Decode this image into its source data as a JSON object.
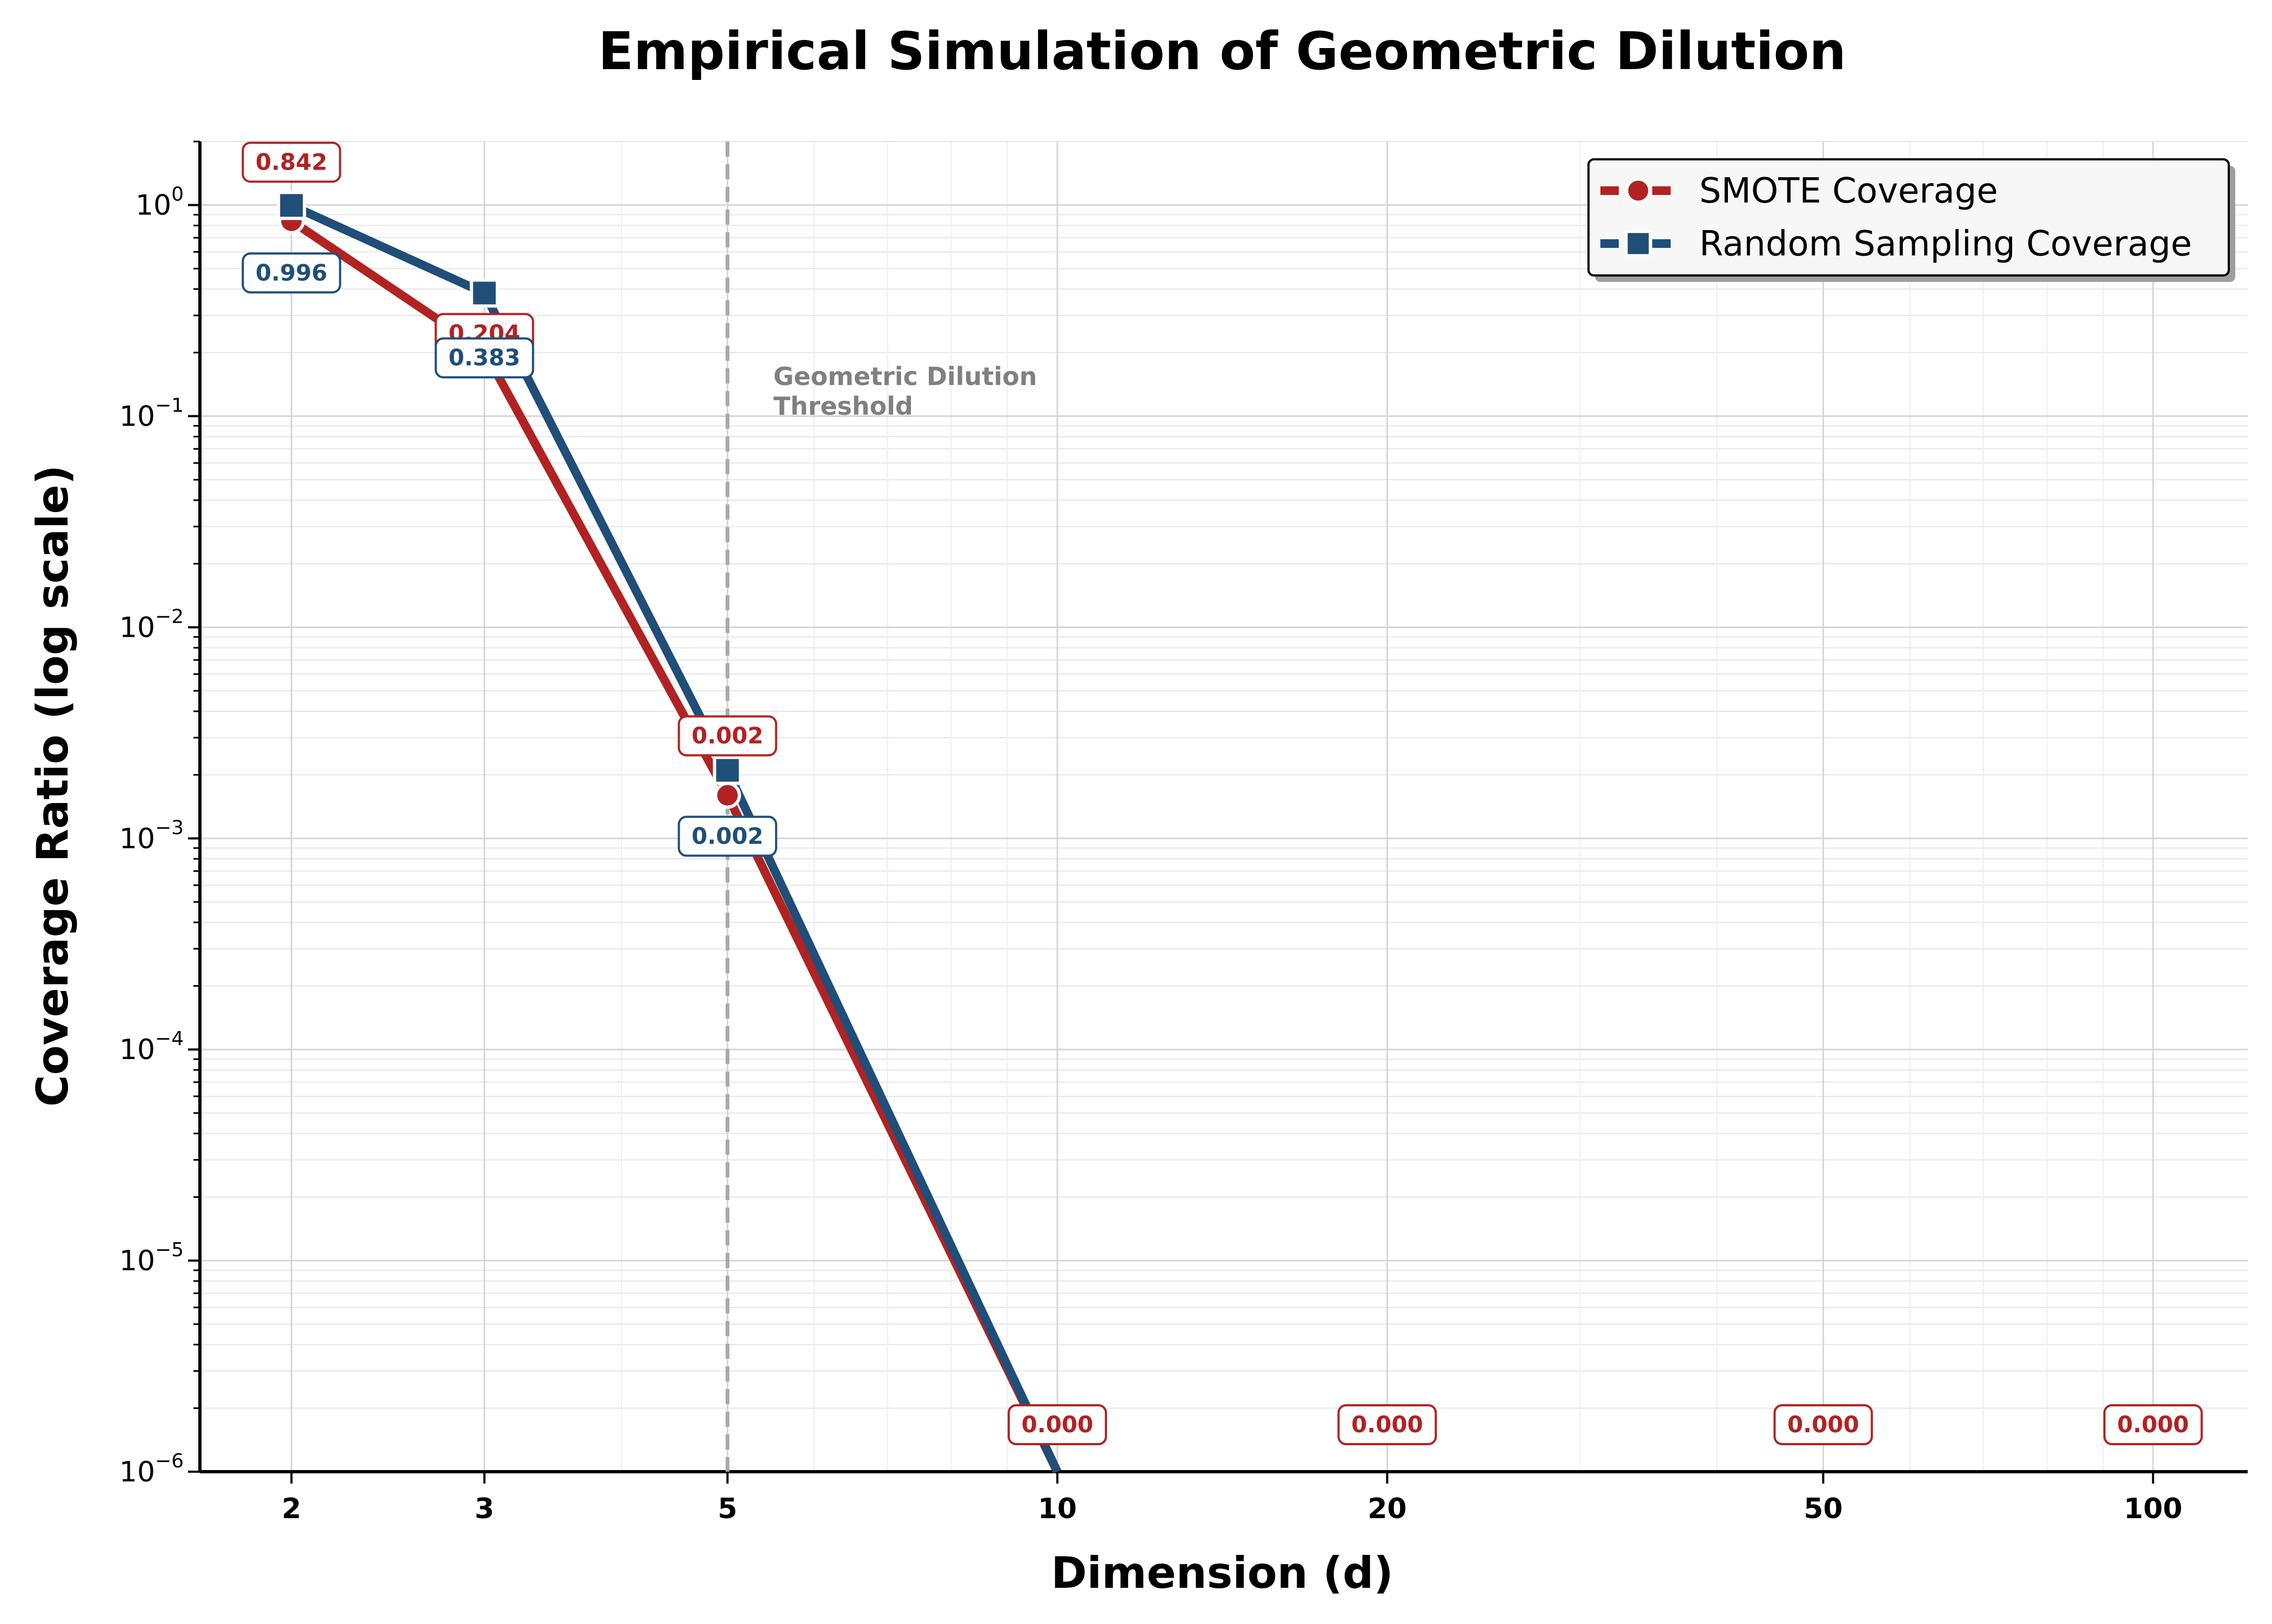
{
  "chart_data": {
    "type": "line",
    "title": "Empirical Simulation of Geometric Dilution",
    "xlabel": "Dimension (d)",
    "ylabel": "Coverage Ratio (log scale)",
    "x_scale": "log",
    "y_scale": "log",
    "xlim": [
      1.65,
      122
    ],
    "ylim": [
      1e-06,
      2
    ],
    "x": [
      2,
      3,
      5,
      10,
      20,
      50,
      100
    ],
    "x_tick_labels": [
      "2",
      "3",
      "5",
      "10",
      "20",
      "50",
      "100"
    ],
    "y_ticks": [
      {
        "value": 1,
        "base": "10",
        "exp": "0"
      },
      {
        "value": 0.1,
        "base": "10",
        "exp": "−1"
      },
      {
        "value": 0.01,
        "base": "10",
        "exp": "−2"
      },
      {
        "value": 0.001,
        "base": "10",
        "exp": "−3"
      },
      {
        "value": 0.0001,
        "base": "10",
        "exp": "−4"
      },
      {
        "value": 1e-05,
        "base": "10",
        "exp": "−5"
      },
      {
        "value": 1e-06,
        "base": "10",
        "exp": "−6"
      }
    ],
    "series": [
      {
        "name": "SMOTE Coverage",
        "color": "#b22222",
        "marker": "circle",
        "values": [
          0.842,
          0.204,
          0.0016,
          0,
          0,
          0,
          0
        ],
        "labels": [
          "0.842",
          "0.204",
          "0.002",
          "0.000",
          "0.000",
          "0.000",
          "0.000"
        ]
      },
      {
        "name": "Random Sampling Coverage",
        "color": "#1f4e79",
        "marker": "square",
        "values": [
          0.996,
          0.383,
          0.0021,
          0,
          0,
          0,
          0
        ],
        "labels": [
          "0.996",
          "0.383",
          "0.002"
        ]
      }
    ],
    "threshold": {
      "x": 5,
      "label_line1": "Geometric Dilution",
      "label_line2": "Threshold",
      "color": "#a9a9a9"
    },
    "grid": true,
    "legend_position": "top-right"
  }
}
